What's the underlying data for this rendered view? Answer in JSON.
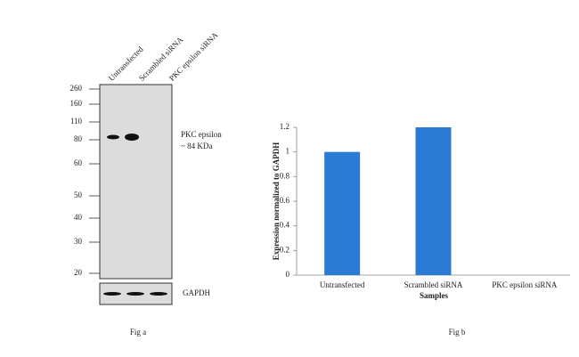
{
  "blot": {
    "lanes": [
      "Untransfected",
      "Scrambled siRNA",
      "PKC epsilon siRNA"
    ],
    "markers": [
      "260",
      "160",
      "110",
      "80",
      "60",
      "50",
      "40",
      "30",
      "20"
    ],
    "band_label": [
      "PKC epsilon",
      "~ 84 KDa"
    ],
    "loading_control": "GAPDH",
    "caption": "Fig a"
  },
  "chart_data": {
    "type": "bar",
    "categories": [
      "Untransfected",
      "Scrambled siRNA",
      "PKC epsilon siRNA"
    ],
    "values": [
      1,
      1.2,
      0
    ],
    "color": "#2b7bd4",
    "ylim": [
      0,
      1.2
    ],
    "yticks": [
      0,
      0.2,
      0.4,
      0.6,
      0.8,
      1,
      1.2
    ],
    "x_label": "Samples",
    "y_label": "Expression normalized to GAPDH",
    "caption": "Fig b"
  }
}
